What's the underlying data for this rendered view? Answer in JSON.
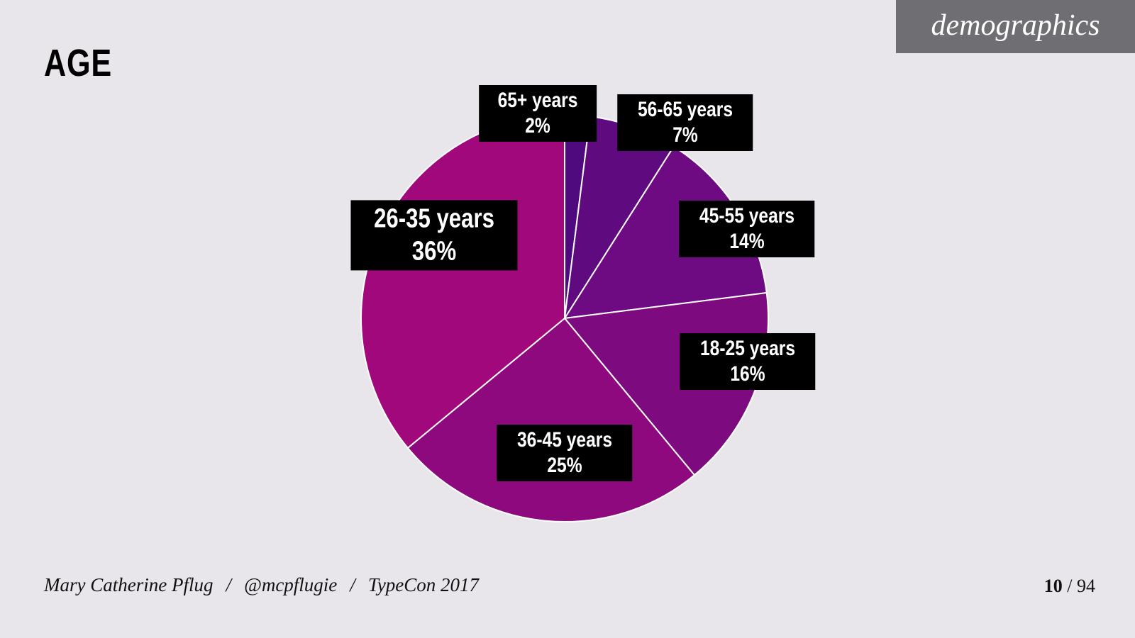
{
  "tag": "demographics",
  "chart_data": {
    "type": "pie",
    "title": "AGE",
    "categories": [
      "65+ years",
      "56-65 years",
      "45-55 years",
      "18-25 years",
      "36-45 years",
      "26-35 years"
    ],
    "values": [
      2,
      7,
      14,
      16,
      25,
      36
    ],
    "value_labels": [
      "2%",
      "7%",
      "14%",
      "16%",
      "25%",
      "36%"
    ],
    "colors": [
      "#4f0a7d",
      "#5f0a7f",
      "#6e0a82",
      "#7e0a80",
      "#8f097e",
      "#a0087b"
    ]
  },
  "footer": {
    "author": "Mary Catherine Pflug",
    "handle": "@mcpflugie",
    "event": "TypeCon 2017",
    "separator": "/"
  },
  "page": {
    "current": 10,
    "total": 94
  }
}
